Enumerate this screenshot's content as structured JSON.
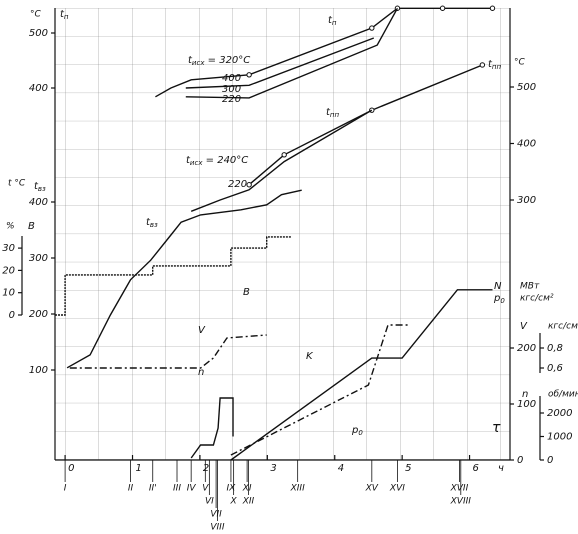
{
  "chart_data": [
    {
      "type": "line",
      "xlim": [
        -0.15,
        6.6
      ],
      "xticks": [
        0,
        1,
        2,
        3,
        4,
        5,
        6
      ],
      "xlabel": "τ",
      "xunit": "ч",
      "stages": [
        {
          "label": "I",
          "x": 0
        },
        {
          "label": "II",
          "x": 0.97
        },
        {
          "label": "II'",
          "x": 1.3
        },
        {
          "label": "III",
          "x": 1.66
        },
        {
          "label": "IV",
          "x": 1.87
        },
        {
          "label": "V",
          "x": 2.08
        },
        {
          "label": "VI",
          "x": 2.14
        },
        {
          "label": "VII",
          "x": 2.24
        },
        {
          "label": "VIII",
          "x": 2.26
        },
        {
          "label": "IX",
          "x": 2.46
        },
        {
          "label": "X",
          "x": 2.5
        },
        {
          "label": "XI",
          "x": 2.7
        },
        {
          "label": "XII",
          "x": 2.72
        },
        {
          "label": "XIII",
          "x": 3.45
        },
        {
          "label": "XV",
          "x": 4.55
        },
        {
          "label": "XVI",
          "x": 4.93
        },
        {
          "label": "XVII",
          "x": 5.85
        },
        {
          "label": "XVIII",
          "x": 5.87
        }
      ],
      "ylim": [
        360,
        545
      ],
      "yticks": [
        400,
        500
      ],
      "unit": [
        "°C"
      ],
      "ylabel": [
        {
          "text": "t",
          "sub": "п"
        }
      ],
      "annotations": [
        {
          "text": "t",
          "sub": "п"
        },
        {
          "text": "t",
          "sub": "исх",
          "suffix": " = 320°C"
        }
      ],
      "series": [
        {
          "name": "400",
          "markers": true,
          "x": [
            1.34,
            1.57,
            1.87,
            2.73,
            4.55,
            4.93,
            5.6,
            6.34
          ],
          "values": [
            384,
            400,
            415,
            424,
            509,
            545,
            545,
            545
          ]
        },
        {
          "name": "300",
          "x": [
            1.79,
            2.73,
            4.58
          ],
          "values": [
            400,
            405,
            491
          ]
        },
        {
          "name": "220",
          "x": [
            1.79,
            2.73,
            4.63,
            4.93
          ],
          "values": [
            384,
            382,
            478,
            545
          ]
        }
      ]
    },
    {
      "type": "line",
      "ylim": [
        280,
        560
      ],
      "yticks": [
        300,
        400,
        500
      ],
      "unit": [
        "°C"
      ],
      "ylabel": [
        {
          "text": "t",
          "sub": "пп"
        }
      ],
      "annotations": [
        {
          "text": "t",
          "sub": "пп"
        },
        {
          "text": "t",
          "sub": "исх",
          "suffix": " = 240°C"
        }
      ],
      "series": [
        {
          "markers": true,
          "x": [
            2.73,
            3.25,
            4.55,
            6.19
          ],
          "values": [
            327,
            380,
            459,
            539
          ]
        },
        {
          "name": "220",
          "x": [
            1.87,
            2.3,
            2.73,
            3.25,
            4.55
          ],
          "values": [
            280,
            300,
            318,
            368,
            459
          ]
        }
      ]
    },
    {
      "type": "line",
      "ylim": [
        90,
        430
      ],
      "yticks": [
        100,
        200,
        300,
        400
      ],
      "unit": [
        "t °C"
      ],
      "ylabel": [
        {
          "text": "t",
          "sub": "вз"
        }
      ],
      "annotations": [
        {
          "text": "t",
          "sub": "вз"
        }
      ],
      "series": [
        {
          "x": [
            0.03,
            0.37,
            0.67,
            0.97,
            1.27,
            1.57,
            1.72,
            2.01,
            2.61,
            2.99,
            3.21,
            3.51
          ],
          "values": [
            104,
            127,
            198,
            261,
            296,
            341,
            364,
            377,
            386,
            395,
            413,
            421
          ]
        }
      ]
    },
    {
      "type": "line",
      "ylim": [
        0,
        35
      ],
      "yticks": [
        0,
        10,
        20,
        30
      ],
      "unit": [
        "%"
      ],
      "ylabel": [
        {
          "text": "В"
        }
      ],
      "series": [
        {
          "name": "В",
          "thick": true,
          "x": [
            -0.15,
            0,
            0,
            1.3,
            1.3,
            2.46,
            2.46,
            2.99,
            2.99,
            3.36
          ],
          "values": [
            0,
            0,
            18,
            18,
            22,
            22,
            30,
            30,
            35,
            35
          ]
        }
      ]
    },
    {
      "type": "line",
      "ylim": [
        0.55,
        0.95
      ],
      "yticks": [
        {
          "value": 0.6,
          "label": "0,6"
        },
        {
          "value": 0.8,
          "label": "0,8"
        }
      ],
      "unit": [
        "кгс/см²"
      ],
      "ylabel": [
        {
          "text": "V"
        }
      ],
      "series": [
        {
          "name": "V",
          "dash": true,
          "x": [
            0.07,
            2.01,
            2.2,
            2.4,
            2.99
          ],
          "values": [
            0.6,
            0.6,
            0.7,
            0.9,
            0.93
          ]
        }
      ]
    },
    {
      "type": "line",
      "ylim": [
        0,
        310
      ],
      "yticks": [
        0,
        100,
        200
      ],
      "unit": [
        "МВт",
        "кгс/см²"
      ],
      "ylabel": [
        {
          "text": "N"
        },
        {
          "text": "p",
          "sub": "0"
        }
      ],
      "annotations": [
        {
          "text": "K"
        }
      ],
      "series": [
        {
          "x": [
            2.46,
            4.55,
            5,
            5.82,
            6.34
          ],
          "values": [
            0,
            182,
            182,
            304,
            304
          ]
        },
        {
          "name": "p",
          "sub": "0",
          "dash": true,
          "x": [
            2.46,
            4.5,
            4.79,
            5.1
          ],
          "values": [
            9,
            134,
            241,
            241
          ]
        }
      ]
    },
    {
      "type": "line",
      "ylim": [
        0,
        2700
      ],
      "yticks": [
        0,
        1000,
        2000
      ],
      "unit": [
        "об/мин"
      ],
      "ylabel": [
        {
          "text": "n"
        }
      ],
      "series": [
        {
          "name": "n",
          "x": [
            1.87,
            2.01,
            2.2,
            2.27,
            2.3,
            2.49,
            2.49
          ],
          "values": [
            85,
            638,
            638,
            1362,
            2638,
            2638,
            1000
          ]
        }
      ]
    }
  ]
}
